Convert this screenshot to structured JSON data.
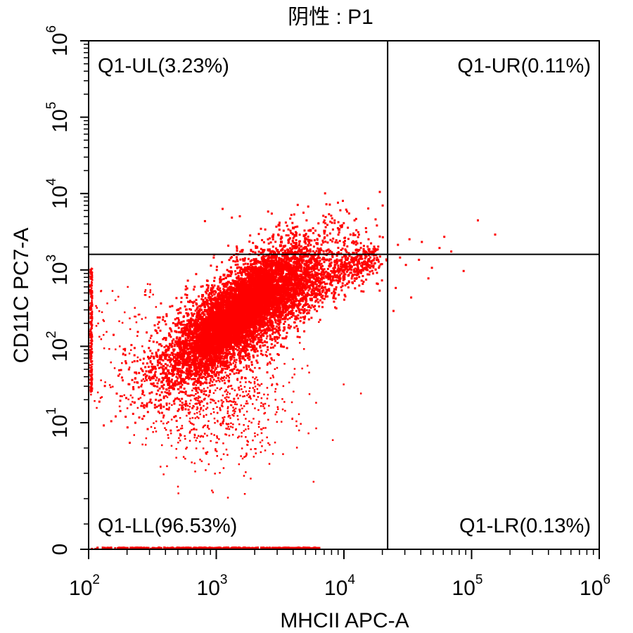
{
  "chart_data": {
    "type": "scatter",
    "title": "阴性 : P1",
    "xlabel": "MHCII APC-A",
    "ylabel": "CD11C PC7-A",
    "x_scale": "log",
    "y_scale": "log",
    "xlim": [
      100,
      1000000
    ],
    "ylim": [
      0,
      1000000
    ],
    "x_ticks": [
      {
        "value": 100,
        "base": "10",
        "exp": "2"
      },
      {
        "value": 1000,
        "base": "10",
        "exp": "3"
      },
      {
        "value": 10000,
        "base": "10",
        "exp": "4"
      },
      {
        "value": 100000,
        "base": "10",
        "exp": "5"
      },
      {
        "value": 1000000,
        "base": "10",
        "exp": "6"
      }
    ],
    "y_ticks": [
      {
        "value": 0,
        "label": "0"
      },
      {
        "value": 10,
        "base": "10",
        "exp": "1"
      },
      {
        "value": 100,
        "base": "10",
        "exp": "2"
      },
      {
        "value": 1000,
        "base": "10",
        "exp": "3"
      },
      {
        "value": 10000,
        "base": "10",
        "exp": "4"
      },
      {
        "value": 100000,
        "base": "10",
        "exp": "5"
      },
      {
        "value": 1000000,
        "base": "10",
        "exp": "6"
      }
    ],
    "gates": {
      "x": 22000,
      "y": 1600
    },
    "quadrants": [
      {
        "id": "UL",
        "label": "Q1-UL(3.23%)",
        "position": "top-left"
      },
      {
        "id": "UR",
        "label": "Q1-UR(0.11%)",
        "position": "top-right"
      },
      {
        "id": "LL",
        "label": "Q1-LL(96.53%)",
        "position": "bottom-left"
      },
      {
        "id": "LR",
        "label": "Q1-LR(0.13%)",
        "position": "bottom-right"
      }
    ],
    "point_color": "#ff0000",
    "populations": [
      {
        "description": "main cluster",
        "x_center": 1600,
        "y_center": 300,
        "x_range": [
          300,
          17000
        ],
        "y_range": [
          20,
          3000
        ],
        "share": 0.9
      },
      {
        "description": "high-x events",
        "x_range": [
          22000,
          160000
        ],
        "y_range": [
          400,
          5000
        ],
        "share": 0.001
      },
      {
        "description": "events on zero baseline",
        "x_range": [
          100,
          6000
        ],
        "y_value": 0
      },
      {
        "description": "events on left edge",
        "x_value": 100,
        "y_range": [
          30,
          2500
        ]
      }
    ]
  }
}
